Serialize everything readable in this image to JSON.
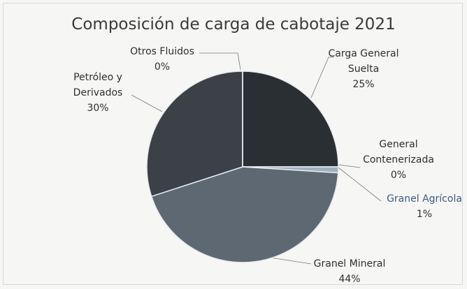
{
  "chart_data": {
    "type": "pie",
    "title": "Composición de carga de cabotaje 2021",
    "categories": [
      "Carga General Suelta",
      "General Contenerizada",
      "Granel Agrícola",
      "Granel Mineral",
      "Petróleo y Derivados",
      "Otros Fluidos"
    ],
    "values": [
      25,
      0,
      1,
      44,
      30,
      0
    ],
    "value_labels": [
      "25%",
      "0%",
      "1%",
      "44%",
      "30%",
      "0%"
    ],
    "colors": [
      "#2a2f34",
      "#8a97a3",
      "#9fb0c0",
      "#5d6873",
      "#3b4147",
      "#b0504f"
    ]
  }
}
